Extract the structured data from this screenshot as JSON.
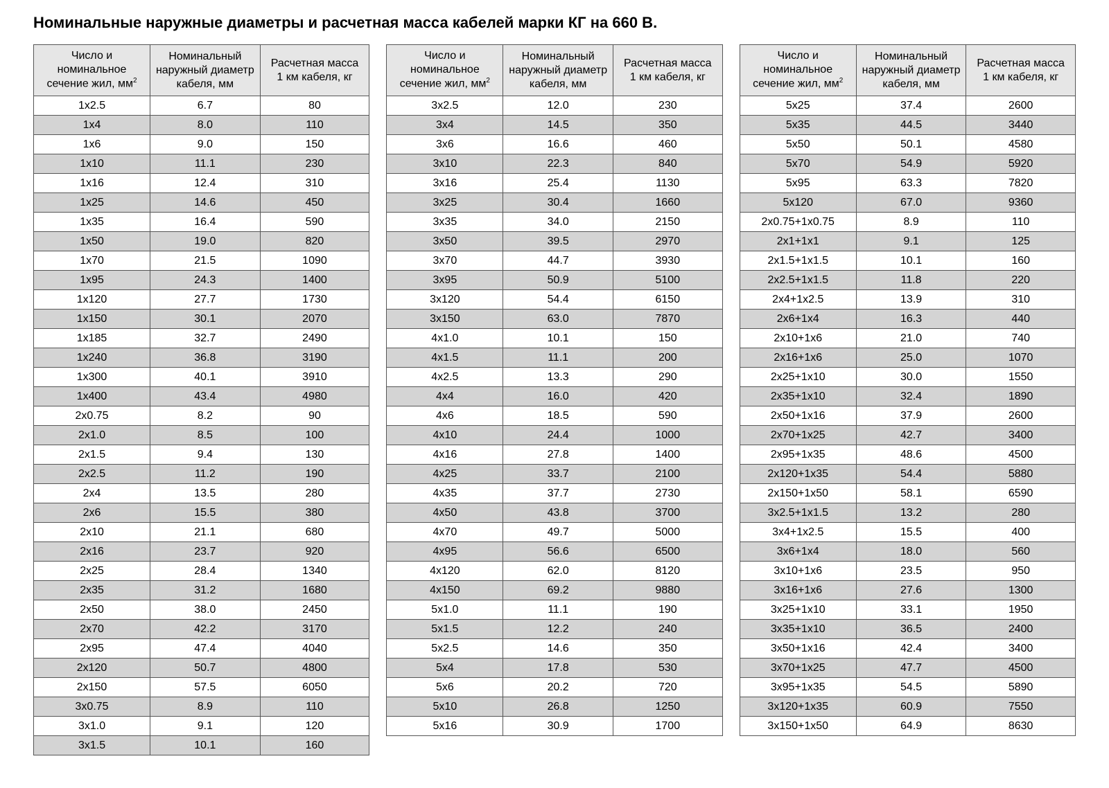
{
  "title": "Номинальные наружные диаметры и расчетная масса кабелей марки КГ на 660 В.",
  "headers": {
    "col1_l1": "Число и",
    "col1_l2": "номинальное",
    "col1_l3_a": "сечение жил, мм",
    "col1_sup": "2",
    "col2_l1": "Номинальный",
    "col2_l2": "наружный диаметр",
    "col2_l3": "кабеля, мм",
    "col3_l1": "Расчетная масса",
    "col3_l2": "1 км кабеля, кг"
  },
  "col_widths": {
    "c1": 170,
    "c2": 160,
    "c3": 160
  },
  "tables": [
    {
      "rows": [
        [
          "1x2.5",
          "6.7",
          "80"
        ],
        [
          "1x4",
          "8.0",
          "110"
        ],
        [
          "1x6",
          "9.0",
          "150"
        ],
        [
          "1x10",
          "11.1",
          "230"
        ],
        [
          "1x16",
          "12.4",
          "310"
        ],
        [
          "1x25",
          "14.6",
          "450"
        ],
        [
          "1x35",
          "16.4",
          "590"
        ],
        [
          "1x50",
          "19.0",
          "820"
        ],
        [
          "1x70",
          "21.5",
          "1090"
        ],
        [
          "1x95",
          "24.3",
          "1400"
        ],
        [
          "1x120",
          "27.7",
          "1730"
        ],
        [
          "1x150",
          "30.1",
          "2070"
        ],
        [
          "1x185",
          "32.7",
          "2490"
        ],
        [
          "1x240",
          "36.8",
          "3190"
        ],
        [
          "1x300",
          "40.1",
          "3910"
        ],
        [
          "1x400",
          "43.4",
          "4980"
        ],
        [
          "2x0.75",
          "8.2",
          "90"
        ],
        [
          "2x1.0",
          "8.5",
          "100"
        ],
        [
          "2x1.5",
          "9.4",
          "130"
        ],
        [
          "2x2.5",
          "11.2",
          "190"
        ],
        [
          "2x4",
          "13.5",
          "280"
        ],
        [
          "2x6",
          "15.5",
          "380"
        ],
        [
          "2x10",
          "21.1",
          "680"
        ],
        [
          "2x16",
          "23.7",
          "920"
        ],
        [
          "2x25",
          "28.4",
          "1340"
        ],
        [
          "2x35",
          "31.2",
          "1680"
        ],
        [
          "2x50",
          "38.0",
          "2450"
        ],
        [
          "2x70",
          "42.2",
          "3170"
        ],
        [
          "2x95",
          "47.4",
          "4040"
        ],
        [
          "2x120",
          "50.7",
          "4800"
        ],
        [
          "2x150",
          "57.5",
          "6050"
        ],
        [
          "3x0.75",
          "8.9",
          "110"
        ],
        [
          "3x1.0",
          "9.1",
          "120"
        ],
        [
          "3x1.5",
          "10.1",
          "160"
        ]
      ]
    },
    {
      "rows": [
        [
          "3x2.5",
          "12.0",
          "230"
        ],
        [
          "3x4",
          "14.5",
          "350"
        ],
        [
          "3x6",
          "16.6",
          "460"
        ],
        [
          "3x10",
          "22.3",
          "840"
        ],
        [
          "3x16",
          "25.4",
          "1130"
        ],
        [
          "3x25",
          "30.4",
          "1660"
        ],
        [
          "3x35",
          "34.0",
          "2150"
        ],
        [
          "3x50",
          "39.5",
          "2970"
        ],
        [
          "3x70",
          "44.7",
          "3930"
        ],
        [
          "3x95",
          "50.9",
          "5100"
        ],
        [
          "3x120",
          "54.4",
          "6150"
        ],
        [
          "3x150",
          "63.0",
          "7870"
        ],
        [
          "4x1.0",
          "10.1",
          "150"
        ],
        [
          "4x1.5",
          "11.1",
          "200"
        ],
        [
          "4x2.5",
          "13.3",
          "290"
        ],
        [
          "4x4",
          "16.0",
          "420"
        ],
        [
          "4x6",
          "18.5",
          "590"
        ],
        [
          "4x10",
          "24.4",
          "1000"
        ],
        [
          "4x16",
          "27.8",
          "1400"
        ],
        [
          "4x25",
          "33.7",
          "2100"
        ],
        [
          "4x35",
          "37.7",
          "2730"
        ],
        [
          "4x50",
          "43.8",
          "3700"
        ],
        [
          "4x70",
          "49.7",
          "5000"
        ],
        [
          "4x95",
          "56.6",
          "6500"
        ],
        [
          "4x120",
          "62.0",
          "8120"
        ],
        [
          "4x150",
          "69.2",
          "9880"
        ],
        [
          "5x1.0",
          "11.1",
          "190"
        ],
        [
          "5x1.5",
          "12.2",
          "240"
        ],
        [
          "5x2.5",
          "14.6",
          "350"
        ],
        [
          "5x4",
          "17.8",
          "530"
        ],
        [
          "5x6",
          "20.2",
          "720"
        ],
        [
          "5x10",
          "26.8",
          "1250"
        ],
        [
          "5x16",
          "30.9",
          "1700"
        ]
      ]
    },
    {
      "rows": [
        [
          "5x25",
          "37.4",
          "2600"
        ],
        [
          "5x35",
          "44.5",
          "3440"
        ],
        [
          "5x50",
          "50.1",
          "4580"
        ],
        [
          "5x70",
          "54.9",
          "5920"
        ],
        [
          "5x95",
          "63.3",
          "7820"
        ],
        [
          "5x120",
          "67.0",
          "9360"
        ],
        [
          "2x0.75+1x0.75",
          "8.9",
          "110"
        ],
        [
          "2x1+1x1",
          "9.1",
          "125"
        ],
        [
          "2x1.5+1x1.5",
          "10.1",
          "160"
        ],
        [
          "2x2.5+1x1.5",
          "11.8",
          "220"
        ],
        [
          "2x4+1x2.5",
          "13.9",
          "310"
        ],
        [
          "2x6+1x4",
          "16.3",
          "440"
        ],
        [
          "2x10+1x6",
          "21.0",
          "740"
        ],
        [
          "2x16+1x6",
          "25.0",
          "1070"
        ],
        [
          "2x25+1x10",
          "30.0",
          "1550"
        ],
        [
          "2x35+1x10",
          "32.4",
          "1890"
        ],
        [
          "2x50+1x16",
          "37.9",
          "2600"
        ],
        [
          "2x70+1x25",
          "42.7",
          "3400"
        ],
        [
          "2x95+1x35",
          "48.6",
          "4500"
        ],
        [
          "2x120+1x35",
          "54.4",
          "5880"
        ],
        [
          "2x150+1x50",
          "58.1",
          "6590"
        ],
        [
          "3x2.5+1x1.5",
          "13.2",
          "280"
        ],
        [
          "3x4+1x2.5",
          "15.5",
          "400"
        ],
        [
          "3x6+1x4",
          "18.0",
          "560"
        ],
        [
          "3x10+1x6",
          "23.5",
          "950"
        ],
        [
          "3x16+1x6",
          "27.6",
          "1300"
        ],
        [
          "3x25+1x10",
          "33.1",
          "1950"
        ],
        [
          "3x35+1x10",
          "36.5",
          "2400"
        ],
        [
          "3x50+1x16",
          "42.4",
          "3400"
        ],
        [
          "3x70+1x25",
          "47.7",
          "4500"
        ],
        [
          "3x95+1x35",
          "54.5",
          "5890"
        ],
        [
          "3x120+1x35",
          "60.9",
          "7550"
        ],
        [
          "3x150+1x50",
          "64.9",
          "8630"
        ]
      ]
    }
  ]
}
